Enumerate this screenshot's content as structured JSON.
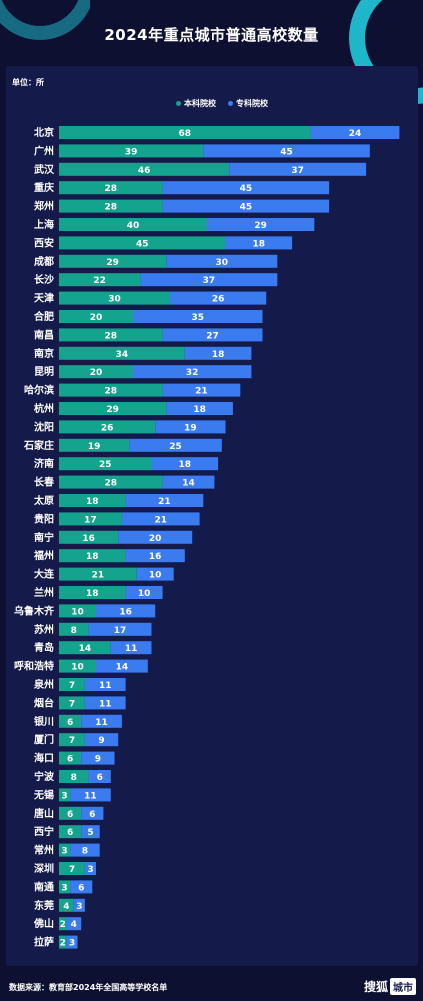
{
  "title": "2024年重点城市普通高校数量",
  "unit_label": "单位：所",
  "source": "数据来源：教育部2024年全国高等学校名单",
  "brand": {
    "name": "搜狐",
    "box": "城市"
  },
  "colors": {
    "background": "#0d1030",
    "panel": "#141a4a",
    "undergrad": "#14a38c",
    "vocational": "#3a7bf0",
    "accent_ring": "#1fb6c9"
  },
  "legend": [
    {
      "label": "本科院校",
      "color": "#14a38c"
    },
    {
      "label": "专科院校",
      "color": "#3a7bf0"
    }
  ],
  "chart_data": {
    "type": "bar",
    "orientation": "horizontal",
    "stacked": true,
    "title": "2024年重点城市普通高校数量",
    "unit": "单位：所",
    "categories": [
      "北京",
      "广州",
      "武汉",
      "重庆",
      "郑州",
      "上海",
      "西安",
      "成都",
      "长沙",
      "天津",
      "合肥",
      "南昌",
      "南京",
      "昆明",
      "哈尔滨",
      "杭州",
      "沈阳",
      "石家庄",
      "济南",
      "长春",
      "太原",
      "贵阳",
      "南宁",
      "福州",
      "大连",
      "兰州",
      "乌鲁木齐",
      "苏州",
      "青岛",
      "呼和浩特",
      "泉州",
      "烟台",
      "银川",
      "厦门",
      "海口",
      "宁波",
      "无锡",
      "唐山",
      "西宁",
      "常州",
      "深圳",
      "南通",
      "东莞",
      "佛山",
      "拉萨"
    ],
    "series": [
      {
        "name": "本科院校",
        "values": [
          68,
          39,
          46,
          28,
          28,
          40,
          45,
          29,
          22,
          30,
          20,
          28,
          34,
          20,
          28,
          29,
          26,
          19,
          25,
          28,
          18,
          17,
          16,
          18,
          21,
          18,
          10,
          8,
          14,
          10,
          7,
          7,
          6,
          7,
          6,
          8,
          3,
          6,
          6,
          3,
          7,
          3,
          4,
          2,
          2
        ]
      },
      {
        "name": "专科院校",
        "values": [
          24,
          45,
          37,
          45,
          45,
          29,
          18,
          30,
          37,
          26,
          35,
          27,
          18,
          32,
          21,
          18,
          19,
          25,
          18,
          14,
          21,
          21,
          20,
          16,
          10,
          10,
          16,
          17,
          11,
          14,
          11,
          11,
          11,
          9,
          9,
          6,
          11,
          6,
          5,
          8,
          3,
          6,
          3,
          4,
          3
        ]
      }
    ],
    "legend_position": "top-center",
    "grid": false
  }
}
